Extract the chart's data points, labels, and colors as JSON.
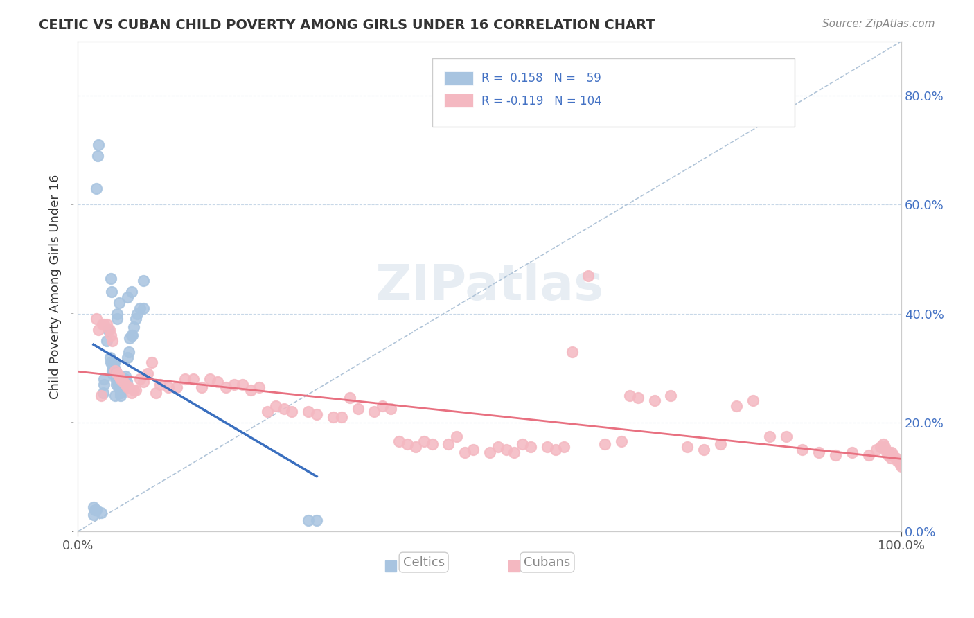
{
  "title": "CELTIC VS CUBAN CHILD POVERTY AMONG GIRLS UNDER 16 CORRELATION CHART",
  "source": "Source: ZipAtlas.com",
  "ylabel": "Child Poverty Among Girls Under 16",
  "xlabel": "",
  "xlim": [
    0.0,
    1.0
  ],
  "ylim": [
    0.0,
    0.9
  ],
  "yticks": [
    0.0,
    0.2,
    0.4,
    0.6,
    0.8
  ],
  "ytick_labels": [
    "0.0%",
    "20.0%",
    "40.0%",
    "60.0%",
    "80.0%"
  ],
  "xticks": [
    0.0,
    1.0
  ],
  "xtick_labels": [
    "0.0%",
    "100.0%"
  ],
  "celtic_R": 0.158,
  "celtic_N": 59,
  "cuban_R": -0.119,
  "cuban_N": 104,
  "celtic_color": "#a8c4e0",
  "cuban_color": "#f4b8c1",
  "celtic_line_color": "#3a6fbf",
  "cuban_line_color": "#e87080",
  "title_color": "#333333",
  "legend_text_color": "#4472c4",
  "background_color": "#ffffff",
  "grid_color": "#c8d8e8",
  "watermark_color": "#d0dce8",
  "celtic_x": [
    0.019,
    0.019,
    0.021,
    0.022,
    0.028,
    0.031,
    0.032,
    0.032,
    0.035,
    0.037,
    0.039,
    0.04,
    0.041,
    0.041,
    0.042,
    0.043,
    0.043,
    0.044,
    0.044,
    0.044,
    0.045,
    0.046,
    0.046,
    0.047,
    0.048,
    0.049,
    0.05,
    0.05,
    0.052,
    0.052,
    0.053,
    0.054,
    0.056,
    0.057,
    0.058,
    0.059,
    0.06,
    0.062,
    0.063,
    0.065,
    0.066,
    0.068,
    0.07,
    0.072,
    0.075,
    0.08,
    0.022,
    0.024,
    0.025,
    0.04,
    0.041,
    0.048,
    0.048,
    0.05,
    0.06,
    0.065,
    0.08,
    0.28,
    0.29
  ],
  "celtic_y": [
    0.03,
    0.045,
    0.04,
    0.04,
    0.035,
    0.255,
    0.27,
    0.28,
    0.35,
    0.37,
    0.32,
    0.31,
    0.31,
    0.31,
    0.295,
    0.29,
    0.3,
    0.3,
    0.31,
    0.31,
    0.25,
    0.28,
    0.295,
    0.27,
    0.275,
    0.265,
    0.27,
    0.275,
    0.25,
    0.255,
    0.26,
    0.26,
    0.28,
    0.28,
    0.285,
    0.275,
    0.32,
    0.33,
    0.355,
    0.36,
    0.36,
    0.375,
    0.39,
    0.4,
    0.41,
    0.41,
    0.63,
    0.69,
    0.71,
    0.465,
    0.44,
    0.39,
    0.4,
    0.42,
    0.43,
    0.44,
    0.46,
    0.02,
    0.02
  ],
  "cuban_x": [
    0.022,
    0.025,
    0.028,
    0.03,
    0.032,
    0.035,
    0.038,
    0.04,
    0.042,
    0.045,
    0.048,
    0.05,
    0.052,
    0.055,
    0.058,
    0.06,
    0.062,
    0.065,
    0.068,
    0.07,
    0.075,
    0.08,
    0.085,
    0.09,
    0.095,
    0.1,
    0.11,
    0.12,
    0.13,
    0.14,
    0.15,
    0.16,
    0.17,
    0.18,
    0.19,
    0.2,
    0.21,
    0.22,
    0.23,
    0.24,
    0.25,
    0.26,
    0.28,
    0.29,
    0.31,
    0.32,
    0.33,
    0.34,
    0.36,
    0.37,
    0.38,
    0.39,
    0.4,
    0.41,
    0.42,
    0.43,
    0.45,
    0.46,
    0.47,
    0.48,
    0.5,
    0.51,
    0.52,
    0.53,
    0.54,
    0.55,
    0.57,
    0.58,
    0.59,
    0.6,
    0.62,
    0.64,
    0.66,
    0.67,
    0.68,
    0.7,
    0.72,
    0.74,
    0.76,
    0.78,
    0.8,
    0.82,
    0.84,
    0.86,
    0.88,
    0.9,
    0.92,
    0.94,
    0.96,
    0.97,
    0.975,
    0.978,
    0.98,
    0.982,
    0.984,
    0.985,
    0.986,
    0.987,
    0.988,
    0.99,
    0.993,
    0.995,
    0.998,
    1.0
  ],
  "cuban_y": [
    0.39,
    0.37,
    0.25,
    0.38,
    0.38,
    0.38,
    0.37,
    0.36,
    0.35,
    0.295,
    0.29,
    0.285,
    0.28,
    0.275,
    0.27,
    0.265,
    0.265,
    0.255,
    0.26,
    0.26,
    0.28,
    0.275,
    0.29,
    0.31,
    0.255,
    0.27,
    0.265,
    0.265,
    0.28,
    0.28,
    0.265,
    0.28,
    0.275,
    0.265,
    0.27,
    0.27,
    0.26,
    0.265,
    0.22,
    0.23,
    0.225,
    0.22,
    0.22,
    0.215,
    0.21,
    0.21,
    0.245,
    0.225,
    0.22,
    0.23,
    0.225,
    0.165,
    0.16,
    0.155,
    0.165,
    0.16,
    0.16,
    0.175,
    0.145,
    0.15,
    0.145,
    0.155,
    0.15,
    0.145,
    0.16,
    0.155,
    0.155,
    0.15,
    0.155,
    0.33,
    0.47,
    0.16,
    0.165,
    0.25,
    0.245,
    0.24,
    0.25,
    0.155,
    0.15,
    0.16,
    0.23,
    0.24,
    0.175,
    0.175,
    0.15,
    0.145,
    0.14,
    0.145,
    0.14,
    0.15,
    0.155,
    0.16,
    0.155,
    0.145,
    0.14,
    0.145,
    0.14,
    0.135,
    0.145,
    0.14,
    0.135,
    0.13,
    0.125,
    0.12
  ]
}
